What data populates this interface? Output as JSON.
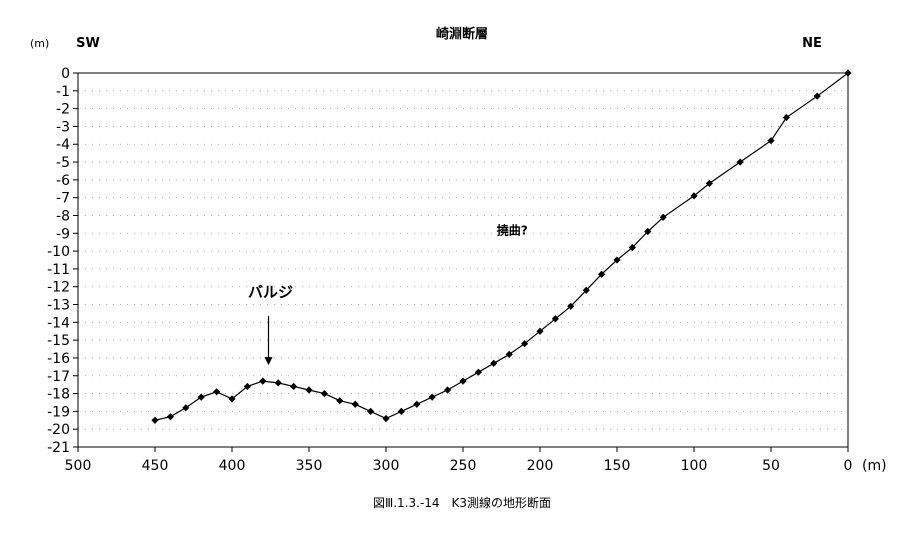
{
  "chart_data": {
    "type": "line",
    "title": "崎淵断層",
    "y_unit": "(m)",
    "x_unit": "(m)",
    "left_label": "SW",
    "right_label": "NE",
    "xlim": [
      500,
      0
    ],
    "ylim": [
      -21,
      0
    ],
    "x_ticks": [
      500,
      450,
      400,
      350,
      300,
      250,
      200,
      150,
      100,
      50,
      0
    ],
    "y_ticks": [
      0,
      -1,
      -2,
      -3,
      -4,
      -5,
      -6,
      -7,
      -8,
      -9,
      -10,
      -11,
      -12,
      -13,
      -14,
      -15,
      -16,
      -17,
      -18,
      -19,
      -20,
      -21
    ],
    "grid": "dotted-horizontal",
    "series": [
      {
        "name": "",
        "color": "#000000",
        "points": [
          [
            450,
            -19.5
          ],
          [
            440,
            -19.3
          ],
          [
            430,
            -18.8
          ],
          [
            420,
            -18.2
          ],
          [
            410,
            -17.9
          ],
          [
            400,
            -18.3
          ],
          [
            390,
            -17.6
          ],
          [
            380,
            -17.3
          ],
          [
            370,
            -17.4
          ],
          [
            360,
            -17.6
          ],
          [
            350,
            -17.8
          ],
          [
            340,
            -18.0
          ],
          [
            330,
            -18.4
          ],
          [
            320,
            -18.6
          ],
          [
            310,
            -19.0
          ],
          [
            300,
            -19.4
          ],
          [
            290,
            -19.0
          ],
          [
            280,
            -18.6
          ],
          [
            270,
            -18.2
          ],
          [
            260,
            -17.8
          ],
          [
            250,
            -17.3
          ],
          [
            240,
            -16.8
          ],
          [
            230,
            -16.3
          ],
          [
            220,
            -15.8
          ],
          [
            210,
            -15.2
          ],
          [
            200,
            -14.5
          ],
          [
            190,
            -13.8
          ],
          [
            180,
            -13.1
          ],
          [
            170,
            -12.2
          ],
          [
            160,
            -11.3
          ],
          [
            150,
            -10.5
          ],
          [
            140,
            -9.8
          ],
          [
            130,
            -8.9
          ],
          [
            120,
            -8.1
          ],
          [
            100,
            -6.9
          ],
          [
            90,
            -6.2
          ],
          [
            70,
            -5.0
          ],
          [
            50,
            -3.8
          ],
          [
            40,
            -2.5
          ],
          [
            20,
            -1.3
          ],
          [
            0,
            0
          ]
        ]
      }
    ],
    "annotations": [
      {
        "text": "バルジ",
        "x": 375,
        "y": -12.3,
        "arrow_to": -16.4
      },
      {
        "text": "撓曲?",
        "x": 218,
        "y": -8.8
      }
    ],
    "caption": "図Ⅲ.1.3.-14　K3測線の地形断面"
  }
}
